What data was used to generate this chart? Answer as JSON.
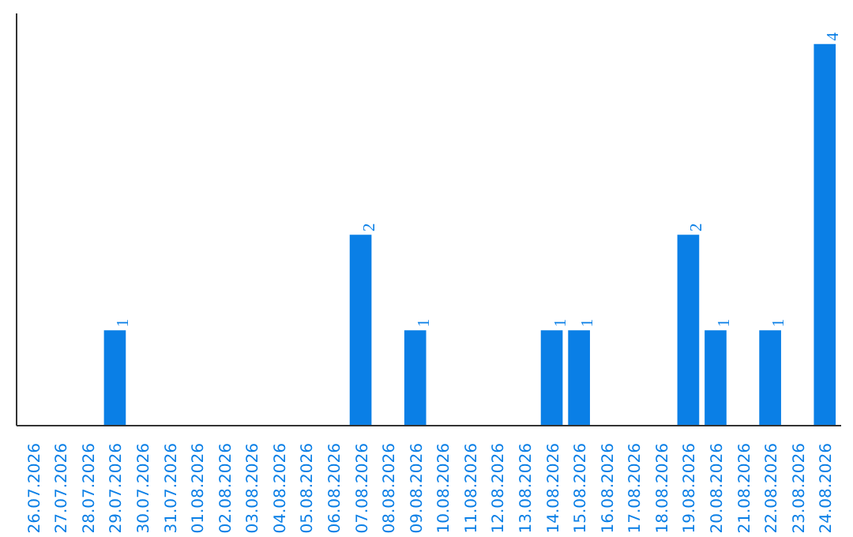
{
  "chart_data": {
    "type": "bar",
    "categories": [
      "26.07.2026",
      "27.07.2026",
      "28.07.2026",
      "29.07.2026",
      "30.07.2026",
      "31.07.2026",
      "01.08.2026",
      "02.08.2026",
      "03.08.2026",
      "04.08.2026",
      "05.08.2026",
      "06.08.2026",
      "07.08.2026",
      "08.08.2026",
      "09.08.2026",
      "10.08.2026",
      "11.08.2026",
      "12.08.2026",
      "13.08.2026",
      "14.08.2026",
      "15.08.2026",
      "16.08.2026",
      "17.08.2026",
      "18.08.2026",
      "19.08.2026",
      "20.08.2026",
      "21.08.2026",
      "22.08.2026",
      "23.08.2026",
      "24.08.2026"
    ],
    "values": [
      0,
      0,
      0,
      1,
      0,
      0,
      0,
      0,
      0,
      0,
      0,
      0,
      2,
      0,
      1,
      0,
      0,
      0,
      0,
      1,
      1,
      0,
      0,
      0,
      2,
      1,
      0,
      1,
      0,
      4
    ],
    "value_labels": [
      null,
      null,
      null,
      "1",
      null,
      null,
      null,
      null,
      null,
      null,
      null,
      null,
      "2",
      null,
      "1",
      null,
      null,
      null,
      null,
      "1",
      "1",
      null,
      null,
      null,
      "2",
      "1",
      null,
      "1",
      null,
      "4"
    ],
    "color": "#0a7fe6",
    "tick_labels": "x"
  }
}
